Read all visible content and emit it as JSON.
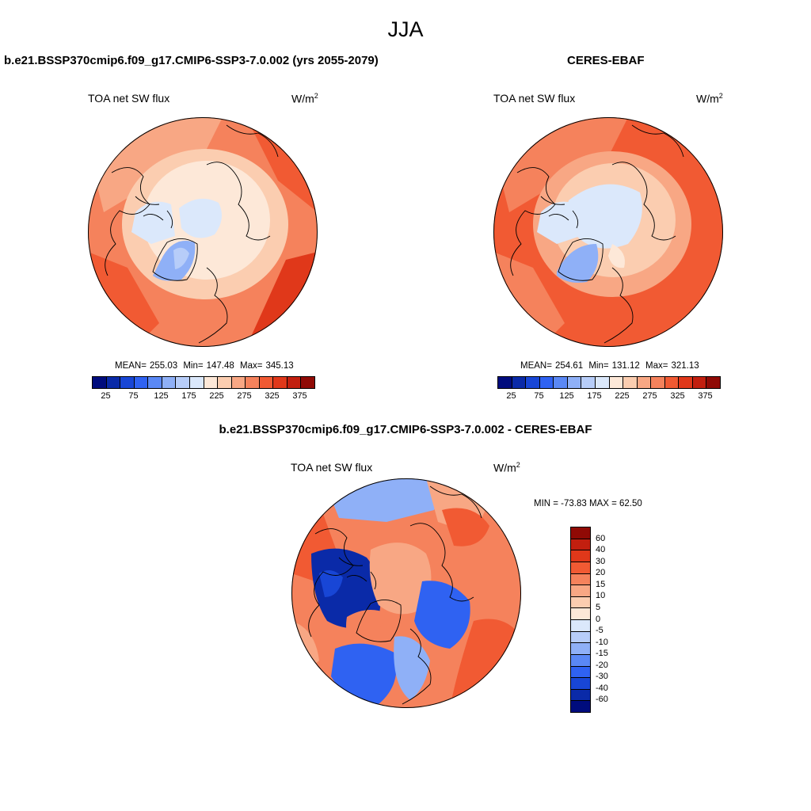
{
  "season": "JJA",
  "panels": {
    "model": {
      "title": "b.e21.BSSP370cmip6.f09_g17.CMIP6-SSP3-7.0.002 (yrs 2055-2079)",
      "variable": "TOA net SW flux",
      "units_base": "W/m",
      "units_exp": "2",
      "stats": {
        "mean_label": "MEAN=",
        "mean": "255.03",
        "min_label": "Min=",
        "min": "147.48",
        "max_label": "Max=",
        "max": "345.13"
      }
    },
    "obs": {
      "title": "CERES-EBAF",
      "variable": "TOA net SW flux",
      "units_base": "W/m",
      "units_exp": "2",
      "stats": {
        "mean_label": "MEAN=",
        "mean": "254.61",
        "min_label": "Min=",
        "min": "131.12",
        "max_label": "Max=",
        "max": "321.13"
      }
    },
    "diff": {
      "title": "b.e21.BSSP370cmip6.f09_g17.CMIP6-SSP3-7.0.002 - CERES-EBAF",
      "variable": "TOA net SW flux",
      "units_base": "W/m",
      "units_exp": "2",
      "minmax": "MIN = -73.83 MAX =  62.50"
    }
  },
  "colorbar_abs": {
    "colors": [
      "#000c7d",
      "#0a2aa8",
      "#1846d6",
      "#2f62f2",
      "#5a88f5",
      "#8fb0f7",
      "#b7cdf9",
      "#dbe8fb",
      "#fde8d8",
      "#fbcdb0",
      "#f8a784",
      "#f5825c",
      "#f15a33",
      "#e0381a",
      "#c21f0f",
      "#900a05"
    ],
    "labels": [
      "25",
      "75",
      "125",
      "175",
      "225",
      "275",
      "325",
      "375"
    ]
  },
  "colorbar_diff": {
    "colors": [
      "#900a05",
      "#c21f0f",
      "#e0381a",
      "#f15a33",
      "#f5825c",
      "#f8a784",
      "#fbcdb0",
      "#fde8d8",
      "#dbe8fb",
      "#b7cdf9",
      "#8fb0f7",
      "#5a88f5",
      "#2f62f2",
      "#1846d6",
      "#0a2aa8",
      "#000c7d"
    ],
    "labels": [
      "60",
      "40",
      "30",
      "20",
      "15",
      "10",
      "5",
      "0",
      "-5",
      "-10",
      "-15",
      "-20",
      "-30",
      "-40",
      "-60"
    ]
  }
}
